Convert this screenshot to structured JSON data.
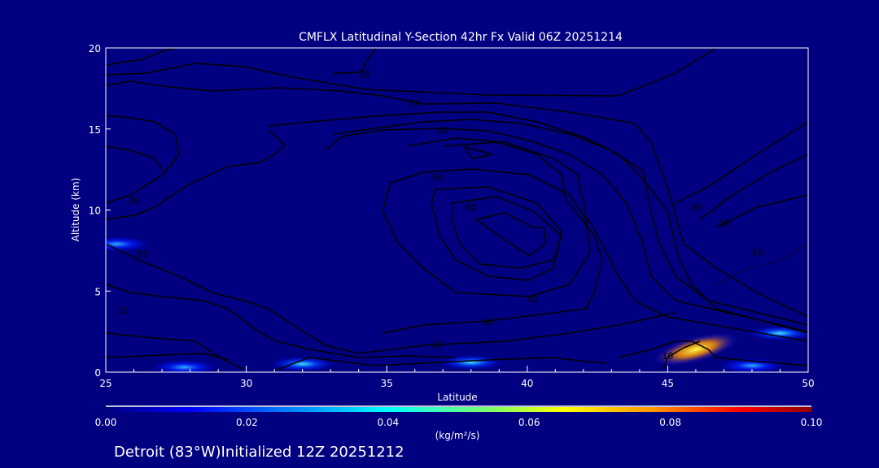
{
  "chart_data": {
    "type": "heatmap",
    "title": "CMFLX Latitudinal Y-Section 42hr  Fx Valid 06Z 20251214",
    "xlabel": "Latitude",
    "ylabel": "Altitude (km)",
    "xlim": [
      25,
      50
    ],
    "ylim": [
      0,
      20
    ],
    "xticks": [
      "25",
      "30",
      "35",
      "40",
      "45",
      "50"
    ],
    "yticks": [
      "0",
      "5",
      "10",
      "15",
      "20"
    ],
    "colorbar": {
      "ticks": [
        "0.00",
        "0.02",
        "0.04",
        "0.06",
        "0.08",
        "0.10"
      ],
      "range": [
        0,
        0.1
      ],
      "units_label": "(kg/m²/s)",
      "colors": [
        "#000080",
        "#0000ff",
        "#00ffff",
        "#80ff60",
        "#ffff00",
        "#ff8000",
        "#ff0000",
        "#800000"
      ]
    },
    "hotspots": [
      {
        "lat": 25.4,
        "alt": 7.9,
        "value": 0.03
      },
      {
        "lat": 27.8,
        "alt": 0.3,
        "value": 0.03
      },
      {
        "lat": 32.0,
        "alt": 0.5,
        "value": 0.035
      },
      {
        "lat": 38.0,
        "alt": 0.6,
        "value": 0.035
      },
      {
        "lat": 46.0,
        "alt": 1.4,
        "value": 0.07
      },
      {
        "lat": 49.0,
        "alt": 2.4,
        "value": 0.035
      },
      {
        "lat": 48.0,
        "alt": 0.4,
        "value": 0.03
      }
    ],
    "contour_labels": [
      {
        "text": "20",
        "lat": 34.2,
        "alt": 18.4
      },
      {
        "text": "30",
        "lat": 36.0,
        "alt": 16.6
      },
      {
        "text": "40",
        "lat": 37.0,
        "alt": 14.9
      },
      {
        "text": "50",
        "lat": 36.8,
        "alt": 12.0
      },
      {
        "text": "60",
        "lat": 38.0,
        "alt": 10.2
      },
      {
        "text": "40",
        "lat": 40.2,
        "alt": 4.5
      },
      {
        "text": "30",
        "lat": 38.6,
        "alt": 3.1
      },
      {
        "text": "20",
        "lat": 36.8,
        "alt": 1.7
      },
      {
        "text": "10",
        "lat": 45.0,
        "alt": 1.0
      },
      {
        "text": "30",
        "lat": 26.0,
        "alt": 10.6
      },
      {
        "text": "20",
        "lat": 26.3,
        "alt": 7.3
      },
      {
        "text": "10",
        "lat": 25.6,
        "alt": 3.8
      },
      {
        "text": "10",
        "lat": 48.2,
        "alt": 7.4
      },
      {
        "text": "20",
        "lat": 47.0,
        "alt": 9.2
      },
      {
        "text": "30",
        "lat": 46.0,
        "alt": 10.2
      }
    ]
  },
  "footer": "Detroit (83°W)Initialized 12Z 20251212"
}
